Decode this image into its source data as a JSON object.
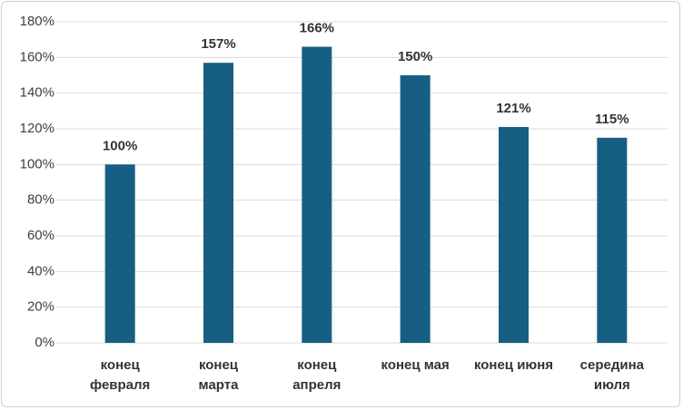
{
  "chart_data": {
    "type": "bar",
    "categories": [
      "конец\nфевраля",
      "конец\nмарта",
      "конец\nапреля",
      "конец мая",
      "конец июня",
      "середина\nиюля"
    ],
    "values": [
      100,
      157,
      166,
      150,
      121,
      115
    ],
    "value_labels": [
      "100%",
      "157%",
      "166%",
      "150%",
      "121%",
      "115%"
    ],
    "color": "#175f82",
    "ylim": [
      0,
      180
    ],
    "yticks": [
      {
        "value": 0,
        "label": "0%"
      },
      {
        "value": 20,
        "label": "20%"
      },
      {
        "value": 40,
        "label": "40%"
      },
      {
        "value": 60,
        "label": "60%"
      },
      {
        "value": 80,
        "label": "80%"
      },
      {
        "value": 100,
        "label": "100%"
      },
      {
        "value": 120,
        "label": "120%"
      },
      {
        "value": 140,
        "label": "140%"
      },
      {
        "value": 160,
        "label": "160%"
      },
      {
        "value": 180,
        "label": "180%"
      }
    ],
    "grid": true
  }
}
